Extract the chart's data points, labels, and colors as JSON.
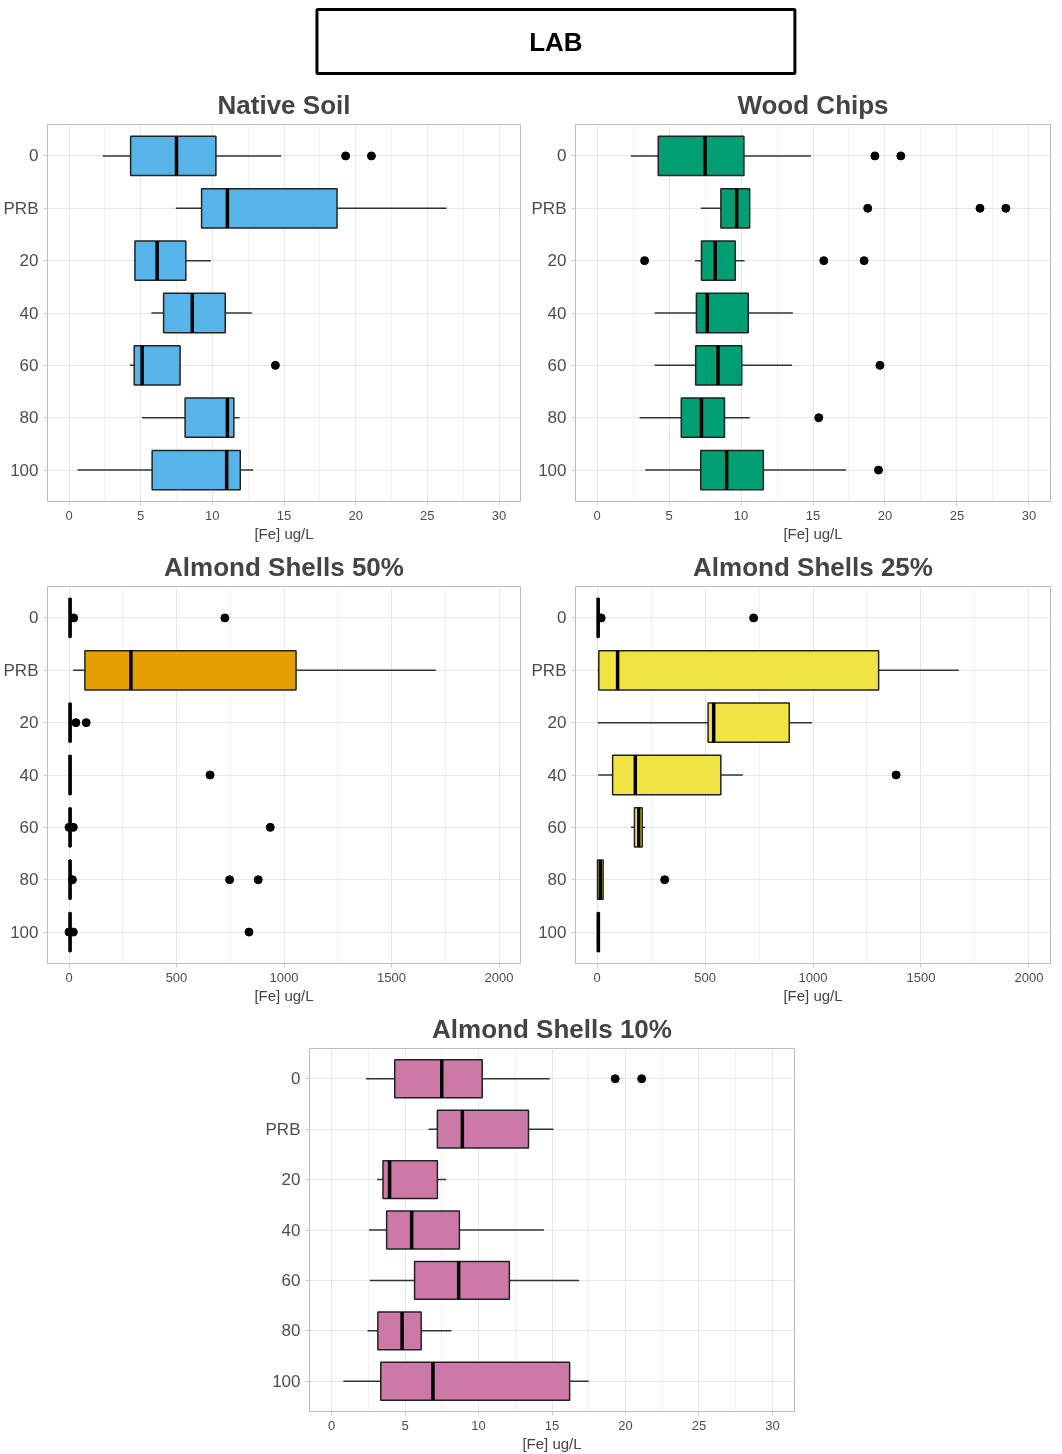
{
  "chart_data": [
    {
      "type": "other",
      "title": "LAB"
    },
    {
      "type": "box",
      "title": "Native Soil",
      "orientation": "horizontal",
      "xlabel": "[Fe] ug/L",
      "color": "#56b4e9",
      "grid": true,
      "categories": [
        "0",
        "PRB",
        "20",
        "40",
        "60",
        "80",
        "100"
      ],
      "xlim": [
        -1.5,
        31.5
      ],
      "xticks": [
        0,
        5,
        10,
        15,
        20,
        25,
        30
      ],
      "boxes": [
        {
          "low": 2.35,
          "q1": 4.3,
          "median": 7.5,
          "q3": 10.25,
          "high": 14.8,
          "outliers": [
            19.3,
            21.1
          ]
        },
        {
          "low": 7.45,
          "q1": 9.25,
          "median": 11.05,
          "q3": 18.7,
          "high": 26.35
        },
        {
          "low": 4.55,
          "q1": 4.6,
          "median": 6.15,
          "q3": 8.15,
          "high": 9.9
        },
        {
          "low": 5.75,
          "q1": 6.6,
          "median": 8.6,
          "q3": 10.9,
          "high": 12.75
        },
        {
          "low": 4.25,
          "q1": 4.55,
          "median": 5.1,
          "q3": 7.75,
          "high": 7.75,
          "outliers": [
            14.4
          ]
        },
        {
          "low": 5.1,
          "q1": 8.1,
          "median": 11.05,
          "q3": 11.5,
          "high": 11.9
        },
        {
          "low": 0.6,
          "q1": 5.8,
          "median": 11.0,
          "q3": 11.95,
          "high": 12.85
        }
      ]
    },
    {
      "type": "box",
      "title": "Wood Chips",
      "orientation": "horizontal",
      "xlabel": "[Fe] ug/L",
      "color": "#009e73",
      "grid": true,
      "categories": [
        "0",
        "PRB",
        "20",
        "40",
        "60",
        "80",
        "100"
      ],
      "xlim": [
        -1.5,
        31.5
      ],
      "xticks": [
        0,
        5,
        10,
        15,
        20,
        25,
        30
      ],
      "boxes": [
        {
          "low": 2.35,
          "q1": 4.25,
          "median": 7.5,
          "q3": 10.2,
          "high": 14.85,
          "outliers": [
            19.3,
            21.1
          ]
        },
        {
          "low": 7.2,
          "q1": 8.6,
          "median": 9.7,
          "q3": 10.6,
          "high": 10.6,
          "outliers": [
            18.8,
            26.6,
            28.4
          ]
        },
        {
          "low": 6.8,
          "q1": 7.25,
          "median": 8.2,
          "q3": 9.6,
          "high": 10.25,
          "outliers": [
            3.3,
            15.75,
            18.55
          ]
        },
        {
          "low": 4.0,
          "q1": 6.9,
          "median": 7.65,
          "q3": 10.5,
          "high": 13.6
        },
        {
          "low": 4.0,
          "q1": 6.85,
          "median": 8.4,
          "q3": 10.05,
          "high": 13.55,
          "outliers": [
            19.65
          ]
        },
        {
          "low": 2.95,
          "q1": 5.85,
          "median": 7.25,
          "q3": 8.85,
          "high": 10.6,
          "outliers": [
            15.4
          ]
        },
        {
          "low": 3.35,
          "q1": 7.2,
          "median": 9.0,
          "q3": 11.55,
          "high": 17.3,
          "outliers": [
            19.55
          ]
        }
      ]
    },
    {
      "type": "box",
      "title": "Almond Shells 50%",
      "orientation": "horizontal",
      "xlabel": "[Fe] ug/L",
      "color": "#e69f00",
      "grid": true,
      "categories": [
        "0",
        "PRB",
        "20",
        "40",
        "60",
        "80",
        "100"
      ],
      "xlim": [
        -100,
        2100
      ],
      "xticks": [
        0,
        500,
        1000,
        1500,
        2000
      ],
      "boxes": [
        {
          "low": 0,
          "q1": 2,
          "median": 5,
          "q3": 8,
          "high": 12,
          "outliers": [
            22,
            725
          ]
        },
        {
          "low": 19,
          "q1": 74,
          "median": 288,
          "q3": 1056,
          "high": 1706
        },
        {
          "low": 0,
          "q1": 2,
          "median": 5,
          "q3": 8,
          "high": 12,
          "outliers": [
            32,
            80
          ]
        },
        {
          "low": 0,
          "q1": 2,
          "median": 5,
          "q3": 8,
          "high": 12,
          "outliers": [
            656
          ]
        },
        {
          "low": 0,
          "q1": 2,
          "median": 5,
          "q3": 8,
          "high": 12,
          "outliers": [
            0,
            20,
            936
          ]
        },
        {
          "low": 0,
          "q1": 2,
          "median": 5,
          "q3": 8,
          "high": 12,
          "outliers": [
            16,
            747,
            880
          ]
        },
        {
          "low": 0,
          "q1": 2,
          "median": 5,
          "q3": 8,
          "high": 12,
          "outliers": [
            0,
            20,
            837
          ]
        }
      ]
    },
    {
      "type": "box",
      "title": "Almond Shells 25%",
      "orientation": "horizontal",
      "xlabel": "[Fe] ug/L",
      "color": "#f0e442",
      "grid": true,
      "categories": [
        "0",
        "PRB",
        "20",
        "40",
        "60",
        "80",
        "100"
      ],
      "xlim": [
        -100,
        2100
      ],
      "xticks": [
        0,
        500,
        1000,
        1500,
        2000
      ],
      "boxes": [
        {
          "low": 0,
          "q1": 2,
          "median": 5,
          "q3": 8,
          "high": 10,
          "outliers": [
            19,
            725
          ]
        },
        {
          "low": 3,
          "q1": 8,
          "median": 95,
          "q3": 1304,
          "high": 1675
        },
        {
          "low": 3,
          "q1": 514,
          "median": 540,
          "q3": 890,
          "high": 996
        },
        {
          "low": 5,
          "q1": 72,
          "median": 177,
          "q3": 573,
          "high": 675,
          "outliers": [
            1385
          ]
        },
        {
          "low": 157,
          "q1": 173,
          "median": 193,
          "q3": 209,
          "high": 222
        },
        {
          "low": 0,
          "q1": 2,
          "median": 15,
          "q3": 28,
          "high": 28,
          "outliers": [
            313
          ]
        },
        {
          "low": 0,
          "q1": 2,
          "median": 6,
          "q3": 10,
          "high": 13
        }
      ]
    },
    {
      "type": "box",
      "title": "Almond Shells 10%",
      "orientation": "horizontal",
      "xlabel": "[Fe] ug/L",
      "color": "#cc79a7",
      "grid": true,
      "categories": [
        "0",
        "PRB",
        "20",
        "40",
        "60",
        "80",
        "100"
      ],
      "xlim": [
        -1.5,
        31.5
      ],
      "xticks": [
        0,
        5,
        10,
        15,
        20,
        25,
        30
      ],
      "boxes": [
        {
          "low": 2.35,
          "q1": 4.3,
          "median": 7.5,
          "q3": 10.25,
          "high": 14.85,
          "outliers": [
            19.3,
            21.1
          ]
        },
        {
          "low": 6.6,
          "q1": 7.2,
          "median": 8.9,
          "q3": 13.4,
          "high": 15.1
        },
        {
          "low": 3.1,
          "q1": 3.5,
          "median": 3.95,
          "q3": 7.2,
          "high": 7.8
        },
        {
          "low": 2.55,
          "q1": 3.75,
          "median": 5.45,
          "q3": 8.7,
          "high": 14.45
        },
        {
          "low": 2.6,
          "q1": 5.65,
          "median": 8.65,
          "q3": 12.1,
          "high": 16.85
        },
        {
          "low": 2.45,
          "q1": 3.15,
          "median": 4.8,
          "q3": 6.1,
          "high": 8.15
        },
        {
          "low": 0.8,
          "q1": 3.35,
          "median": 6.9,
          "q3": 16.2,
          "high": 17.5
        }
      ]
    }
  ]
}
